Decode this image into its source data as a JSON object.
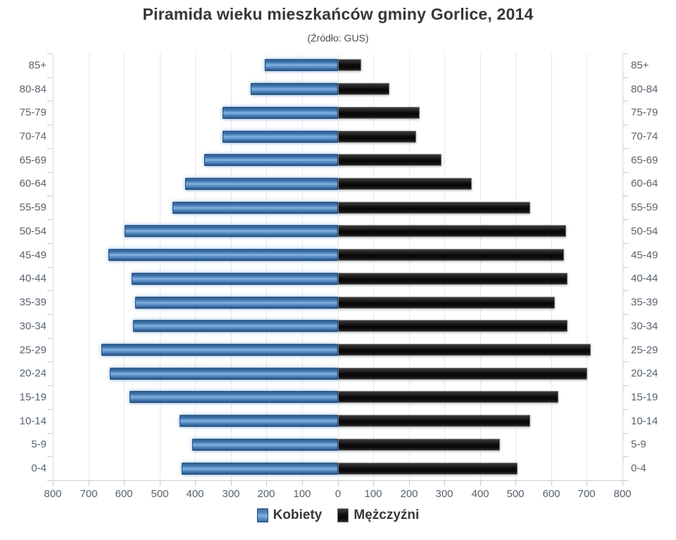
{
  "chart_data": {
    "type": "bar",
    "variant": "population-pyramid",
    "title": "Piramida wieku mieszkańców gminy Gorlice, 2014",
    "subtitle": "(Źródło: GUS)",
    "categories": [
      "85+",
      "80-84",
      "75-79",
      "70-74",
      "65-69",
      "60-64",
      "55-59",
      "50-54",
      "45-49",
      "40-44",
      "35-39",
      "30-34",
      "25-29",
      "20-24",
      "15-19",
      "10-14",
      "5-9",
      "0-4"
    ],
    "series": [
      {
        "name": "Kobiety",
        "side": "left",
        "color": "#4e86c0",
        "values": [
          205,
          245,
          325,
          325,
          375,
          430,
          465,
          600,
          645,
          580,
          570,
          575,
          665,
          640,
          585,
          445,
          410,
          440
        ]
      },
      {
        "name": "Mężczyźni",
        "side": "right",
        "color": "#151515",
        "values": [
          65,
          145,
          230,
          220,
          290,
          375,
          540,
          640,
          635,
          645,
          610,
          645,
          710,
          700,
          620,
          540,
          455,
          505
        ]
      }
    ],
    "x_axis": {
      "tick_labels": [
        "800",
        "700",
        "600",
        "500",
        "400",
        "300",
        "200",
        "100",
        "0",
        "100",
        "200",
        "300",
        "400",
        "500",
        "600",
        "700",
        "800"
      ],
      "max_each_side": 800,
      "step": 100,
      "grid": true
    },
    "legend_position": "bottom",
    "colors": {
      "grid": "#e8e8e8",
      "axis": "#c9cfd5",
      "label_text": "#57626d",
      "title_text": "#373737"
    }
  }
}
